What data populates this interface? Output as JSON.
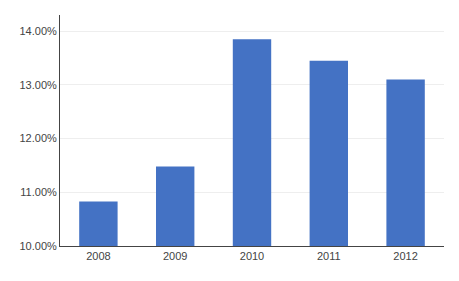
{
  "chart_data": {
    "type": "bar",
    "categories": [
      "2008",
      "2009",
      "2010",
      "2011",
      "2012"
    ],
    "values": [
      0.1083,
      0.1148,
      0.1385,
      0.1345,
      0.131
    ],
    "color": "#4472c4",
    "ylim": [
      0.1,
      0.143
    ],
    "yticks": [
      {
        "value": 0.1,
        "label": "10.00%"
      },
      {
        "value": 0.11,
        "label": "11.00%"
      },
      {
        "value": 0.12,
        "label": "12.00%"
      },
      {
        "value": 0.13,
        "label": "13.00%"
      },
      {
        "value": 0.14,
        "label": "14.00%"
      }
    ],
    "grid": true
  }
}
